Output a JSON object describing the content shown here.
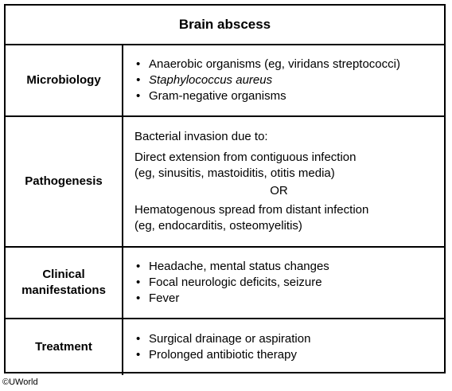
{
  "title": "Brain abscess",
  "rows": [
    {
      "label": "Microbiology",
      "bullets": [
        "Anaerobic organisms (eg, viridans streptococci)",
        "Staphylococcus aureus",
        "Gram-negative organisms"
      ]
    },
    {
      "label": "Pathogenesis",
      "intro": "Bacterial invasion due to:",
      "option1_line1": "Direct extension from contiguous infection",
      "option1_line2": "(eg, sinusitis, mastoiditis, otitis media)",
      "or": "OR",
      "option2_line1": "Hematogenous spread from distant infection",
      "option2_line2": "(eg, endocarditis, osteomyelitis)"
    },
    {
      "label_line1": "Clinical",
      "label_line2": "manifestations",
      "bullets": [
        "Headache, mental status changes",
        "Focal neurologic deficits, seizure",
        "Fever"
      ]
    },
    {
      "label": "Treatment",
      "bullets": [
        "Surgical drainage or aspiration",
        "Prolonged antibiotic therapy"
      ]
    }
  ],
  "copyright": "©UWorld"
}
